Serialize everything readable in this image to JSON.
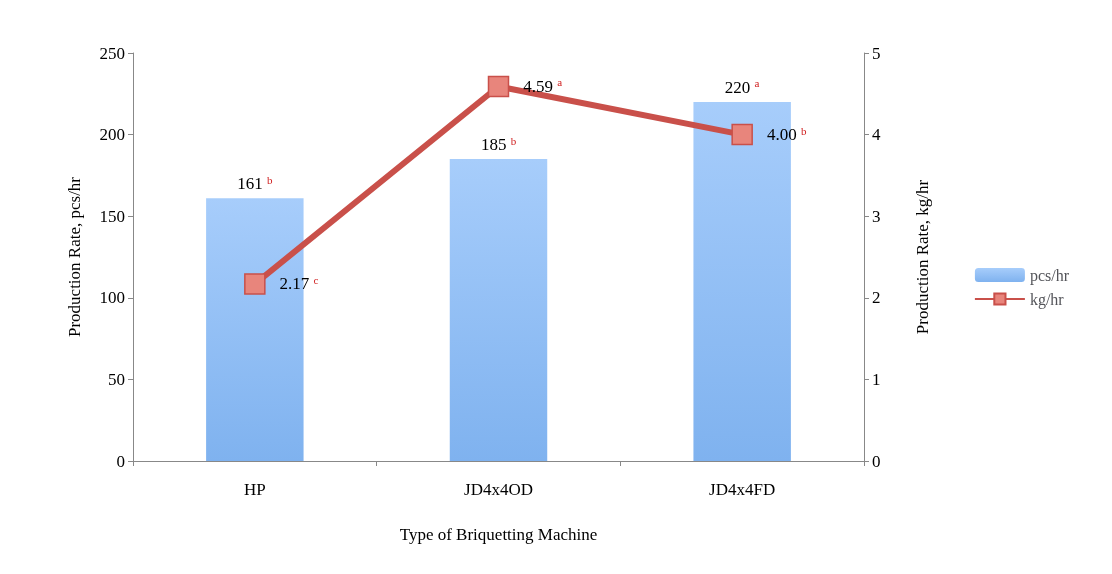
{
  "chart_data": {
    "type": "bar",
    "categories": [
      "HP",
      "JD4x4OD",
      "JD4x4FD"
    ],
    "xlabel": "Type of Briquetting Machine",
    "ylabel": "Production Rate, pcs/hr",
    "y2label": "Production Rate, kg/hr",
    "series": [
      {
        "name": "pcs/hr",
        "color": "#7fb2ef",
        "values": [
          161,
          185,
          220
        ],
        "value_labels": [
          "161$^{b}$",
          "185$^{b}$",
          "220$^{a}$"
        ]
      },
      {
        "name": "kg/hr",
        "type": "line",
        "axis": "y2",
        "color": "#c9504a",
        "values": [
          2.17,
          4.59,
          4.0
        ],
        "value_labels": [
          "2.17$^{c}$",
          "4.59$^{a}$",
          "4.00$^{b}$"
        ]
      }
    ],
    "ylim": [
      0,
      250
    ],
    "yticks": [
      0,
      50,
      100,
      150,
      200,
      250
    ],
    "y2lim": [
      0,
      5
    ],
    "y2ticks": [
      0,
      1,
      2,
      3,
      4,
      5
    ],
    "legend": "right",
    "marker": "square",
    "grid": false
  }
}
